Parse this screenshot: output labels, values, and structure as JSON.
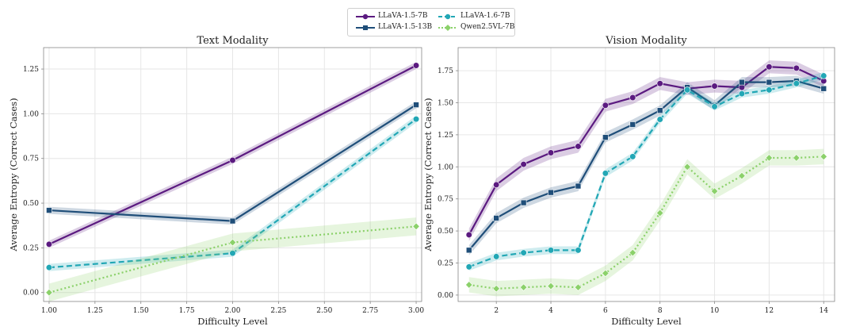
{
  "chart_data": [
    {
      "type": "line",
      "title": "Text Modality",
      "xlabel": "Difficulty Level",
      "ylabel": "Average Entropy (Correct Cases)",
      "xlim": [
        0.97,
        3.03
      ],
      "ylim": [
        -0.05,
        1.37
      ],
      "xticks": [
        1.0,
        1.25,
        1.5,
        1.75,
        2.0,
        2.25,
        2.5,
        2.75,
        3.0
      ],
      "xtick_labels": [
        "1.00",
        "1.25",
        "1.50",
        "1.75",
        "2.00",
        "2.25",
        "2.50",
        "2.75",
        "3.00"
      ],
      "yticks": [
        0.0,
        0.25,
        0.5,
        0.75,
        1.0,
        1.25
      ],
      "ytick_labels": [
        "0.00",
        "0.25",
        "0.50",
        "0.75",
        "1.00",
        "1.25"
      ],
      "grid": true,
      "x": [
        1,
        2,
        3
      ],
      "series": [
        {
          "name": "LLaVA-1.5-7B",
          "values": [
            0.27,
            0.74,
            1.27
          ],
          "band": 0.02
        },
        {
          "name": "LLaVA-1.5-13B",
          "values": [
            0.46,
            0.4,
            1.05
          ],
          "band": 0.02
        },
        {
          "name": "LLaVA-1.6-7B",
          "values": [
            0.14,
            0.22,
            0.97
          ],
          "band": 0.02
        },
        {
          "name": "Qwen2.5VL-7B",
          "values": [
            0.0,
            0.28,
            0.37
          ],
          "band": 0.05
        }
      ]
    },
    {
      "type": "line",
      "title": "Vision Modality",
      "xlabel": "Difficulty Level",
      "ylabel": "Average Entropy (Correct Cases)",
      "xlim": [
        0.6,
        14.4
      ],
      "ylim": [
        -0.05,
        1.93
      ],
      "xticks": [
        2,
        4,
        6,
        8,
        10,
        12,
        14
      ],
      "xtick_labels": [
        "2",
        "4",
        "6",
        "8",
        "10",
        "12",
        "14"
      ],
      "yticks": [
        0.0,
        0.25,
        0.5,
        0.75,
        1.0,
        1.25,
        1.5,
        1.75
      ],
      "ytick_labels": [
        "0.00",
        "0.25",
        "0.50",
        "0.75",
        "1.00",
        "1.25",
        "1.50",
        "1.75"
      ],
      "grid": true,
      "x": [
        1,
        2,
        3,
        4,
        5,
        6,
        7,
        8,
        9,
        10,
        11,
        12,
        13,
        14
      ],
      "series": [
        {
          "name": "LLaVA-1.5-7B",
          "values": [
            0.47,
            0.86,
            1.02,
            1.11,
            1.16,
            1.48,
            1.54,
            1.65,
            1.61,
            1.63,
            1.62,
            1.78,
            1.77,
            1.67
          ],
          "band": 0.05
        },
        {
          "name": "LLaVA-1.5-13B",
          "values": [
            0.35,
            0.6,
            0.72,
            0.8,
            0.85,
            1.23,
            1.33,
            1.44,
            1.62,
            1.48,
            1.66,
            1.66,
            1.67,
            1.61
          ],
          "band": 0.04
        },
        {
          "name": "LLaVA-1.6-7B",
          "values": [
            0.22,
            0.3,
            0.33,
            0.35,
            0.35,
            0.95,
            1.08,
            1.37,
            1.6,
            1.47,
            1.57,
            1.6,
            1.65,
            1.71
          ],
          "band": 0.03
        },
        {
          "name": "Qwen2.5VL-7B",
          "values": [
            0.08,
            0.05,
            0.06,
            0.07,
            0.06,
            0.17,
            0.33,
            0.64,
            1.0,
            0.81,
            0.93,
            1.07,
            1.07,
            1.08
          ],
          "band": 0.06
        }
      ]
    }
  ],
  "legend": {
    "placement": "top-center",
    "entries": [
      "LLaVA-1.5-7B",
      "LLaVA-1.5-13B",
      "LLaVA-1.6-7B",
      "Qwen2.5VL-7B"
    ]
  },
  "styles": {
    "LLaVA-1.5-7B": {
      "color": "#5b1a80",
      "dash": "",
      "marker": "circle"
    },
    "LLaVA-1.5-13B": {
      "color": "#1f4e79",
      "dash": "",
      "marker": "square"
    },
    "LLaVA-1.6-7B": {
      "color": "#22a7b5",
      "dash": "7,4",
      "marker": "circle"
    },
    "Qwen2.5VL-7B": {
      "color": "#8bd16a",
      "dash": "2,3",
      "marker": "diamond"
    }
  },
  "colors": {
    "grid": "#e6e6e6",
    "axis": "#888888",
    "text": "#222222"
  }
}
